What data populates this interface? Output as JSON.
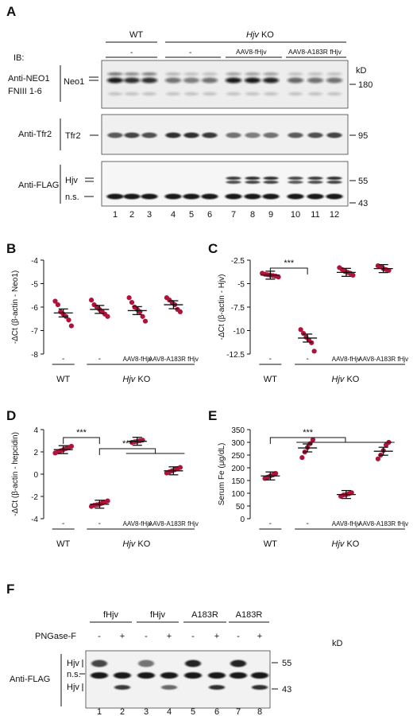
{
  "panelA": {
    "letter": "A",
    "groupWT": "WT",
    "groupKO": "Hjv",
    "groupKOsuffix": " KO",
    "ib": "IB:",
    "dash": "-",
    "treat1": "AAV8-fHjv",
    "treat2": "AAV8-A183R fHjv",
    "kd": "kD",
    "blots": [
      {
        "ab": [
          "Anti-NEO1",
          "FNIII 1-6"
        ],
        "band": "Neo1",
        "mw": [
          "180"
        ]
      },
      {
        "ab": [
          "Anti-Tfr2"
        ],
        "band": "Tfr2",
        "mw": [
          "95"
        ]
      },
      {
        "ab": [
          "Anti-FLAG"
        ],
        "band": "Hjv",
        "band2": "n.s.",
        "mw": [
          "55",
          "43"
        ]
      }
    ],
    "lanes": [
      "1",
      "2",
      "3",
      "4",
      "5",
      "6",
      "7",
      "8",
      "9",
      "10",
      "11",
      "12"
    ]
  },
  "panelF": {
    "letter": "F",
    "samples": [
      "fHjv",
      "fHjv",
      "A183R",
      "A183R"
    ],
    "png": "PNGase-F",
    "pngSigns": [
      "-",
      "+",
      "-",
      "+",
      "-",
      "+",
      "-",
      "+"
    ],
    "ab": "Anti-FLAG",
    "bands": [
      "Hjv",
      "n.s.",
      "Hjv"
    ],
    "kd": "kD",
    "mw": [
      "55",
      "43"
    ],
    "lanes": [
      "1",
      "2",
      "3",
      "4",
      "5",
      "6",
      "7",
      "8"
    ]
  },
  "xaxis": {
    "cats": [
      "-",
      "-",
      "AAV8-fHjv",
      "AAV8-A183R fHjv"
    ],
    "wt": "WT",
    "ko": "Hjv",
    "koSuffix": " KO"
  },
  "sig": "***",
  "chart_data": [
    {
      "panel": "B",
      "type": "scatter",
      "ylabel": "-ΔCt (β-actin - Neo1)",
      "ylim": [
        -8,
        -4
      ],
      "yticks": [
        -4,
        -5,
        -6,
        -7,
        -8
      ],
      "categories": [
        "WT",
        "Hjv KO -",
        "Hjv KO AAV8-fHjv",
        "Hjv KO AAV8-A183R fHjv"
      ],
      "means": [
        -6.25,
        -6.1,
        -6.15,
        -5.9
      ],
      "points": [
        [
          -5.75,
          -5.9,
          -6.2,
          -6.3,
          -6.4,
          -6.55,
          -6.8
        ],
        [
          -5.7,
          -5.9,
          -6.0,
          -6.1,
          -6.2,
          -6.3,
          -6.4
        ],
        [
          -5.6,
          -5.8,
          -6.0,
          -6.1,
          -6.2,
          -6.4,
          -6.6
        ],
        [
          -5.6,
          -5.7,
          -5.8,
          -5.9,
          -6.1,
          -6.2
        ]
      ],
      "significance": []
    },
    {
      "panel": "C",
      "type": "scatter",
      "ylabel": "-ΔCt (β-actin - Hjv)",
      "ylim": [
        -12.5,
        -2.5
      ],
      "yticks": [
        -2.5,
        -5.0,
        -7.5,
        -10.0,
        -12.5
      ],
      "categories": [
        "WT",
        "Hjv KO -",
        "Hjv KO AAV8-fHjv",
        "Hjv KO AAV8-A183R fHjv"
      ],
      "means": [
        -4.1,
        -10.8,
        -3.8,
        -3.4
      ],
      "points": [
        [
          -3.9,
          -4.0,
          -4.05,
          -4.1,
          -4.15,
          -4.2,
          -4.3
        ],
        [
          -9.9,
          -10.3,
          -10.7,
          -11.0,
          -11.3,
          -12.2
        ],
        [
          -3.3,
          -3.5,
          -3.7,
          -3.8,
          -3.9,
          -4.1
        ],
        [
          -3.1,
          -3.2,
          -3.4,
          -3.5,
          -3.6
        ]
      ],
      "significance": [
        {
          "from": 0,
          "to": [
            1
          ],
          "label": "***"
        }
      ]
    },
    {
      "panel": "D",
      "type": "scatter",
      "ylabel": "-ΔCt (β-actin - hepcidin)",
      "ylim": [
        -4,
        4
      ],
      "yticks": [
        4,
        2,
        0,
        -2,
        -4
      ],
      "categories": [
        "WT",
        "Hjv KO -",
        "Hjv KO AAV8-fHjv",
        "Hjv KO AAV8-A183R fHjv"
      ],
      "means": [
        2.2,
        -2.7,
        2.95,
        0.3
      ],
      "points": [
        [
          1.9,
          2.0,
          2.1,
          2.2,
          2.3,
          2.4,
          2.5
        ],
        [
          -2.9,
          -2.8,
          -2.75,
          -2.7,
          -2.6,
          -2.5,
          -2.4
        ],
        [
          2.85,
          2.9,
          2.95,
          3.0,
          3.05
        ],
        [
          0.1,
          0.2,
          0.3,
          0.4,
          0.5,
          0.6
        ]
      ],
      "significance": [
        {
          "from": 0,
          "to": [
            1
          ],
          "label": "***"
        },
        {
          "from": 1,
          "to": [
            2,
            3
          ],
          "label": "***"
        }
      ]
    },
    {
      "panel": "E",
      "type": "scatter",
      "ylabel": "Serum Fe (μg/dL)",
      "ylim": [
        0,
        350
      ],
      "yticks": [
        350,
        300,
        250,
        200,
        150,
        100,
        50,
        0
      ],
      "categories": [
        "WT",
        "Hjv KO -",
        "Hjv KO AAV8-fHjv",
        "Hjv KO AAV8-A183R fHjv"
      ],
      "means": [
        168,
        278,
        95,
        265
      ],
      "points": [
        [
          158,
          163,
          168,
          172,
          178
        ],
        [
          240,
          262,
          280,
          295,
          310
        ],
        [
          88,
          93,
          95,
          98,
          102
        ],
        [
          235,
          250,
          268,
          290,
          300
        ]
      ],
      "significance": [
        {
          "from": 0,
          "to": [
            1,
            2,
            3
          ],
          "label": "***"
        }
      ]
    }
  ]
}
